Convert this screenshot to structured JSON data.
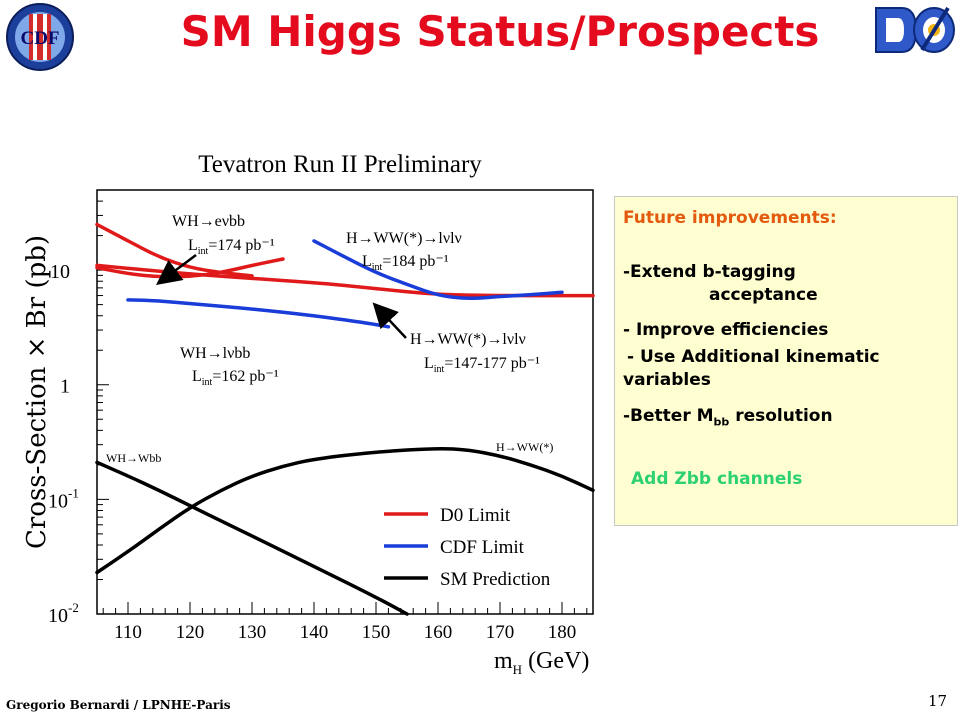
{
  "slide": {
    "title": "SM Higgs Status/Prospects",
    "footer": "Gregorio Bernardi / LPNHE-Paris",
    "page_number": "17",
    "logos": {
      "left": "CDF II",
      "right": "DØ"
    }
  },
  "annotation": {
    "title": "Future improvements:",
    "item1_a": "-Extend b-tagging",
    "item1_b": "acceptance",
    "item2": "- Improve efficiencies",
    "item3_a": "- Use Additional kinematic",
    "item3_b": "variables",
    "item4_pre": "-Better M",
    "item4_sub": "bb",
    "item4_post": " resolution",
    "item5": "Add Zbb channels",
    "colors": {
      "title": "#e35a0e",
      "item5": "#2ed172",
      "background": "#fefed0"
    }
  },
  "chart_data": {
    "type": "line",
    "title": "Tevatron Run II Preliminary",
    "xlabel": "m_H (GeV)",
    "ylabel": "Cross-Section × Br (pb)",
    "x_scale": "linear",
    "y_scale": "log",
    "xlim": [
      105,
      185
    ],
    "ylim": [
      0.01,
      50
    ],
    "x_ticks": [
      110,
      120,
      130,
      140,
      150,
      160,
      170,
      180
    ],
    "y_ticks": [
      {
        "value": 10,
        "base": "10",
        "exp": ""
      },
      {
        "value": 1,
        "base": "1",
        "exp": ""
      },
      {
        "value": 0.1,
        "base": "10",
        "exp": "-1"
      },
      {
        "value": 0.01,
        "base": "10",
        "exp": "-2"
      }
    ],
    "legend": [
      {
        "name": "D0 Limit",
        "color": "#e01a1a"
      },
      {
        "name": "CDF Limit",
        "color": "#1a3cd8"
      },
      {
        "name": "SM Prediction",
        "color": "#000000"
      }
    ],
    "legend_position": "bottom-right",
    "series": [
      {
        "group": "D0 Limit",
        "color": "#e01a1a",
        "points": [
          [
            105,
            25
          ],
          [
            110,
            18
          ],
          [
            115,
            13
          ],
          [
            120,
            10.5
          ],
          [
            125,
            9.5
          ],
          [
            130,
            8.9
          ]
        ]
      },
      {
        "group": "D0 Limit",
        "color": "#e01a1a",
        "points": [
          [
            105,
            10.5
          ],
          [
            110,
            9.3
          ],
          [
            115,
            8.7
          ],
          [
            120,
            8.8
          ],
          [
            125,
            9.5
          ],
          [
            130,
            11
          ],
          [
            135,
            12.5
          ]
        ]
      },
      {
        "group": "D0 Limit",
        "color": "#e01a1a",
        "points": [
          [
            105,
            11
          ],
          [
            120,
            9.2
          ],
          [
            140,
            7.8
          ],
          [
            150,
            6.9
          ],
          [
            160,
            6.1
          ],
          [
            170,
            6.0
          ],
          [
            185,
            6.0
          ]
        ]
      },
      {
        "group": "CDF Limit",
        "color": "#1a3cd8",
        "points": [
          [
            110,
            5.5
          ],
          [
            115,
            5.4
          ],
          [
            120,
            5.1
          ],
          [
            130,
            4.6
          ],
          [
            140,
            4.0
          ],
          [
            148,
            3.5
          ],
          [
            152,
            3.2
          ]
        ]
      },
      {
        "group": "CDF Limit",
        "color": "#1a3cd8",
        "points": [
          [
            140,
            18
          ],
          [
            145,
            13
          ],
          [
            150,
            9.5
          ],
          [
            155,
            7.5
          ],
          [
            160,
            6.0
          ],
          [
            165,
            5.6
          ],
          [
            170,
            5.9
          ],
          [
            175,
            6.1
          ],
          [
            180,
            6.4
          ]
        ]
      },
      {
        "group": "SM Prediction",
        "color": "#000000",
        "points": [
          [
            105,
            0.21
          ],
          [
            110,
            0.16
          ],
          [
            115,
            0.12
          ],
          [
            120,
            0.088
          ],
          [
            125,
            0.065
          ],
          [
            130,
            0.048
          ],
          [
            140,
            0.026
          ],
          [
            150,
            0.014
          ],
          [
            155,
            0.01
          ]
        ]
      },
      {
        "group": "SM Prediction",
        "color": "#000000",
        "points": [
          [
            105,
            0.023
          ],
          [
            110,
            0.035
          ],
          [
            115,
            0.055
          ],
          [
            120,
            0.085
          ],
          [
            125,
            0.12
          ],
          [
            130,
            0.16
          ],
          [
            135,
            0.195
          ],
          [
            140,
            0.225
          ],
          [
            150,
            0.26
          ],
          [
            160,
            0.28
          ],
          [
            165,
            0.27
          ],
          [
            170,
            0.24
          ],
          [
            175,
            0.2
          ],
          [
            180,
            0.16
          ],
          [
            185,
            0.12
          ]
        ]
      }
    ],
    "labels": [
      {
        "text": "WH→eνbb",
        "sub": ""
      },
      {
        "text": "L",
        "sub": "int",
        "after": "=174 pb⁻¹"
      },
      {
        "text": "H→WW(*)→lνlν",
        "sub": ""
      },
      {
        "text": "L",
        "sub": "int",
        "after": "=184 pb⁻¹"
      },
      {
        "text": "WH→lνbb",
        "sub": ""
      },
      {
        "text": "L",
        "sub": "int",
        "after": "=162 pb⁻¹"
      },
      {
        "text": "H→WW(*)→lνlν",
        "sub": ""
      },
      {
        "text": "L",
        "sub": "int",
        "after": "=147-177 pb⁻¹"
      },
      {
        "text": "WH→Wbb",
        "sub": ""
      },
      {
        "text": "H→WW(*)",
        "sub": ""
      }
    ]
  }
}
